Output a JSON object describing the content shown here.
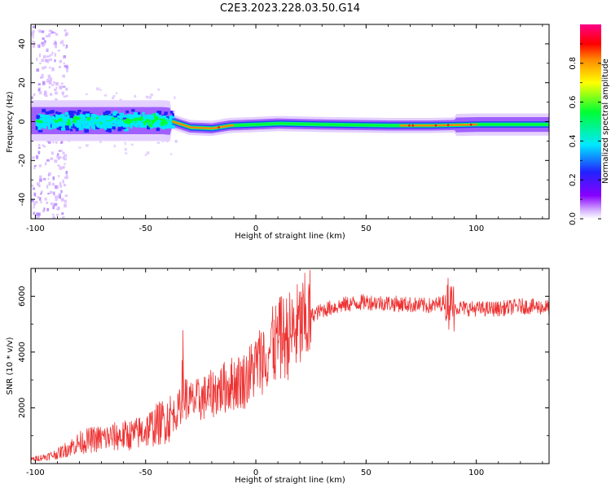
{
  "title": "C2E3.2023.228.03.50.G14",
  "chart_data": [
    {
      "type": "heatmap",
      "xlabel": "Height of straight line (km)",
      "ylabel": "Frequency (Hz)",
      "xlim": [
        -102,
        133
      ],
      "ylim": [
        -50,
        50
      ],
      "xticks": [
        -100,
        -50,
        0,
        50,
        100
      ],
      "yticks": [
        -40,
        -20,
        0,
        20,
        40
      ],
      "colorbar": {
        "label": "Normalized spectral amplitude",
        "range": [
          0,
          1
        ],
        "ticks": [
          0.0,
          0.2,
          0.4,
          0.6,
          0.8
        ],
        "tick_labels": [
          "0.0",
          "0.2",
          "0.4",
          "0.6",
          "0.8"
        ],
        "colormap": "rainbow (white, purple, blue, cyan, green, yellow, orange, red, magenta)"
      },
      "ridge": [
        {
          "x": -100,
          "freq": 0.5
        },
        {
          "x": -60,
          "freq": 0.5
        },
        {
          "x": -42,
          "freq": 0.5
        },
        {
          "x": -38,
          "freq": 0.0
        },
        {
          "x": -30,
          "freq": -3.0
        },
        {
          "x": -20,
          "freq": -3.5
        },
        {
          "x": -12,
          "freq": -2.0
        },
        {
          "x": 0,
          "freq": -1.5
        },
        {
          "x": 10,
          "freq": -1.0
        },
        {
          "x": 30,
          "freq": -1.5
        },
        {
          "x": 60,
          "freq": -2.0
        },
        {
          "x": 80,
          "freq": -2.0
        },
        {
          "x": 100,
          "freq": -1.5
        },
        {
          "x": 133,
          "freq": -1.5
        }
      ]
    },
    {
      "type": "line",
      "xlabel": "Height of straight line (km)",
      "ylabel": "SNR (10 * v/v)",
      "xlim": [
        -102,
        133
      ],
      "ylim": [
        0,
        7000
      ],
      "xticks": [
        -100,
        -50,
        0,
        50,
        100
      ],
      "yticks": [
        2000,
        4000,
        6000
      ],
      "color": "#ee3333",
      "series": [
        {
          "x": [
            -102,
            -95,
            -90,
            -85,
            -80,
            -75,
            -70,
            -65,
            -60,
            -55,
            -50,
            -45,
            -40,
            -35,
            -33,
            -30,
            -25,
            -20,
            -15,
            -10,
            -5,
            0,
            3,
            5,
            8,
            10,
            15,
            20,
            25,
            30,
            40,
            50,
            60,
            70,
            80,
            86,
            88,
            90,
            100,
            110,
            120,
            133
          ],
          "values": [
            150,
            250,
            350,
            550,
            750,
            850,
            900,
            950,
            1000,
            1050,
            1200,
            1400,
            1600,
            1900,
            2500,
            2200,
            2300,
            2500,
            2700,
            2900,
            3000,
            3500,
            3800,
            4000,
            4200,
            4400,
            4600,
            4900,
            5300,
            5500,
            5700,
            5800,
            5750,
            5700,
            5650,
            5800,
            6000,
            5600,
            5550,
            5550,
            5650,
            5600
          ]
        }
      ]
    }
  ]
}
